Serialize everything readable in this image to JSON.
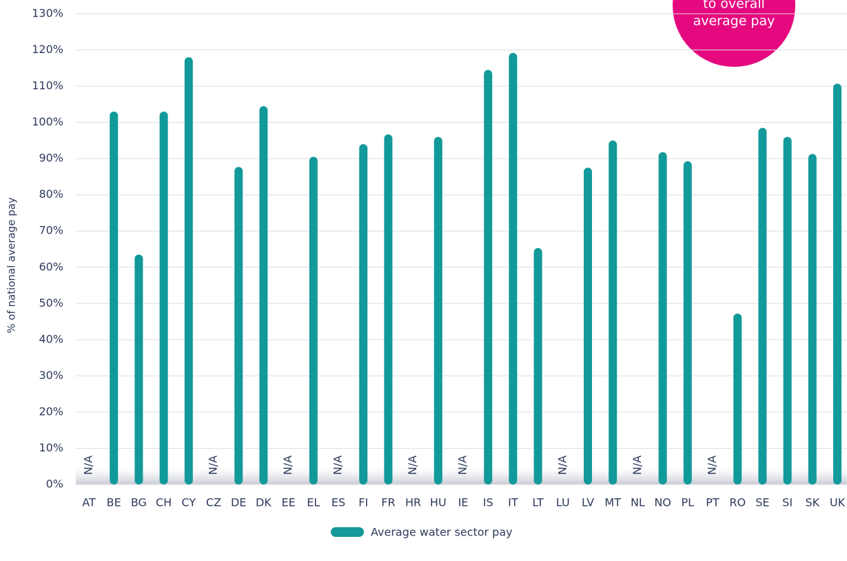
{
  "chart_data": {
    "type": "bar",
    "y_axis_label": "% of national average pay",
    "annotation": [
      "to overall",
      "average pay"
    ],
    "categories": [
      "AT",
      "BE",
      "BG",
      "CH",
      "CY",
      "CZ",
      "DE",
      "DK",
      "EE",
      "EL",
      "ES",
      "FI",
      "FR",
      "HR",
      "HU",
      "IE",
      "IS",
      "IT",
      "LT",
      "LU",
      "LV",
      "MT",
      "NL",
      "NO",
      "PL",
      "PT",
      "RO",
      "SE",
      "SI",
      "SK",
      "UK"
    ],
    "series": [
      {
        "name": "Average water sector pay",
        "color": "#12999a",
        "values": [
          null,
          103,
          63.5,
          103,
          118,
          null,
          87.7,
          104.5,
          null,
          90.5,
          null,
          94,
          96.7,
          null,
          96,
          null,
          114.5,
          119.2,
          65.3,
          null,
          87.5,
          95,
          null,
          91.8,
          89.3,
          null,
          47.2,
          98.5,
          96,
          91.3,
          110.7
        ],
        "value_labels": [
          "N/A",
          null,
          null,
          null,
          null,
          "N/A",
          null,
          null,
          "N/A",
          null,
          "N/A",
          null,
          null,
          "N/A",
          null,
          "N/A",
          null,
          null,
          null,
          "N/A",
          null,
          null,
          "N/A",
          null,
          null,
          "N/A",
          null,
          null,
          null,
          null,
          null
        ]
      }
    ],
    "ylim": [
      0,
      130
    ],
    "yticks": [
      {
        "value": 0,
        "label": "0%"
      },
      {
        "value": 10,
        "label": "10%"
      },
      {
        "value": 20,
        "label": "20%"
      },
      {
        "value": 30,
        "label": "30%"
      },
      {
        "value": 40,
        "label": "40%"
      },
      {
        "value": 50,
        "label": "50%"
      },
      {
        "value": 60,
        "label": "60%"
      },
      {
        "value": 70,
        "label": "70%"
      },
      {
        "value": 80,
        "label": "80%"
      },
      {
        "value": 90,
        "label": "90%"
      },
      {
        "value": 100,
        "label": "100%"
      },
      {
        "value": 110,
        "label": "110%"
      },
      {
        "value": 120,
        "label": "120%"
      },
      {
        "value": 130,
        "label": "130%"
      }
    ],
    "grid": true,
    "legend": "bottom"
  }
}
